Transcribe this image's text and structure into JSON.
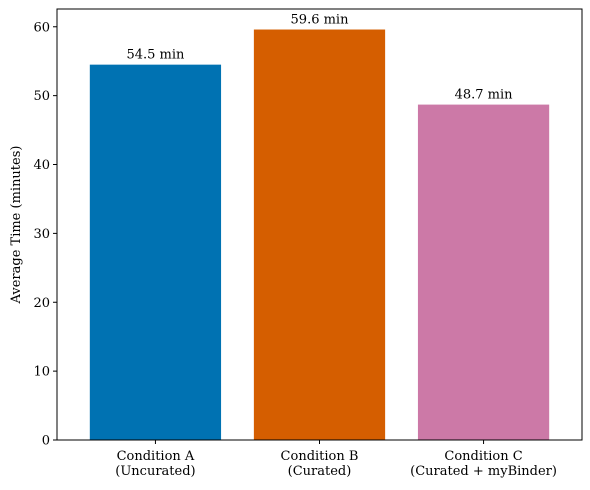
{
  "chart_data": {
    "type": "bar",
    "categories": [
      [
        "Condition A",
        "(Uncurated)"
      ],
      [
        "Condition B",
        "(Curated)"
      ],
      [
        "Condition C",
        "(Curated + myBinder)"
      ]
    ],
    "values": [
      54.5,
      59.6,
      48.7
    ],
    "data_labels": [
      "54.5 min",
      "59.6 min",
      "48.7 min"
    ],
    "colors": [
      "#0072B2",
      "#D55E00",
      "#CC79A7"
    ],
    "ylabel": "Average Time (minutes)",
    "xlabel": "",
    "title": "",
    "ylim": [
      0,
      62.58
    ],
    "yticks": [
      0,
      10,
      20,
      30,
      40,
      50,
      60
    ],
    "grid": false,
    "legend": "none"
  }
}
